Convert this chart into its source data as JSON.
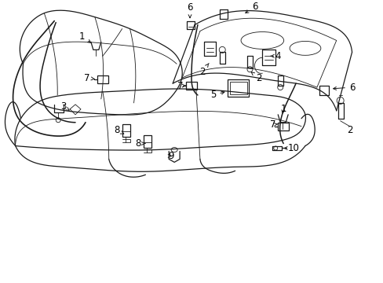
{
  "background_color": "#ffffff",
  "line_color": "#1a1a1a",
  "label_color": "#000000",
  "fig_width": 4.89,
  "fig_height": 3.6,
  "dpi": 100,
  "lw_main": 0.9,
  "lw_thin": 0.6,
  "fontsize_label": 8.5
}
